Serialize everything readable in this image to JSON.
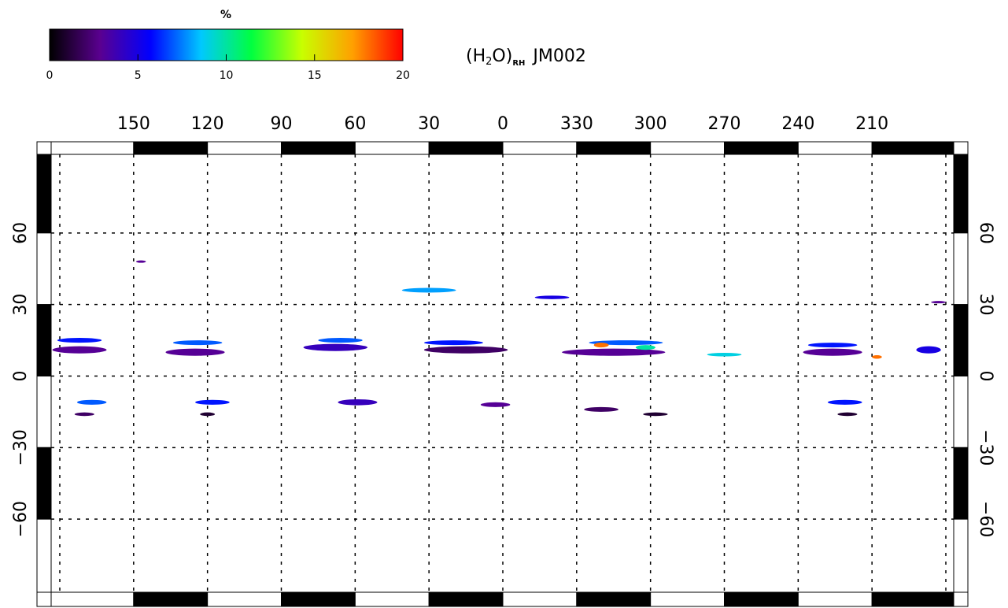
{
  "chart_data": {
    "type": "map",
    "title_parts": [
      "(H",
      "2",
      "O)",
      "RH",
      "JM002"
    ],
    "colorbar": {
      "label": "%",
      "clim": [
        0,
        20
      ],
      "ticks": [
        0,
        5,
        10,
        15,
        20
      ],
      "colormap": [
        "#000000",
        "#5a0090",
        "#0000ff",
        "#00c8ff",
        "#00ff40",
        "#c8ff00",
        "#ffa000",
        "#ff0000"
      ]
    },
    "xlim": [
      180,
      -180
    ],
    "xticks": [
      150,
      120,
      90,
      60,
      30,
      0,
      {
        "value": -30,
        "label": "330"
      },
      {
        "value": -60,
        "label": "300"
      },
      {
        "value": -90,
        "label": "270"
      },
      {
        "value": -120,
        "label": "240"
      },
      {
        "value": -150,
        "label": "210"
      }
    ],
    "ylim": [
      -90,
      90
    ],
    "yticks": [
      60,
      30,
      0,
      {
        "value": -30,
        "label": "−30"
      },
      {
        "value": -60,
        "label": "−60"
      }
    ],
    "grid": true,
    "patches": [
      {
        "lon": 172,
        "lat": 11,
        "lon_span": 22,
        "lat_span": 3,
        "value": 3
      },
      {
        "lon": 172,
        "lat": 15,
        "lon_span": 18,
        "lat_span": 2,
        "value": 6
      },
      {
        "lon": 125,
        "lat": 10,
        "lon_span": 24,
        "lat_span": 3,
        "value": 3
      },
      {
        "lon": 124,
        "lat": 14,
        "lon_span": 20,
        "lat_span": 2,
        "value": 7
      },
      {
        "lon": 68,
        "lat": 12,
        "lon_span": 26,
        "lat_span": 3,
        "value": 4
      },
      {
        "lon": 66,
        "lat": 15,
        "lon_span": 18,
        "lat_span": 2,
        "value": 7
      },
      {
        "lon": 15,
        "lat": 11,
        "lon_span": 34,
        "lat_span": 3,
        "value": 2
      },
      {
        "lon": 20,
        "lat": 14,
        "lon_span": 24,
        "lat_span": 2,
        "value": 6
      },
      {
        "lon": -45,
        "lat": 10,
        "lon_span": 42,
        "lat_span": 3,
        "value": 3
      },
      {
        "lon": -50,
        "lat": 14,
        "lon_span": 30,
        "lat_span": 2,
        "value": 7
      },
      {
        "lon": -40,
        "lat": 13,
        "lon_span": 6,
        "lat_span": 2,
        "value": 18
      },
      {
        "lon": -58,
        "lat": 12,
        "lon_span": 8,
        "lat_span": 2,
        "value": 10
      },
      {
        "lon": -90,
        "lat": 9,
        "lon_span": 14,
        "lat_span": 1.5,
        "value": 9
      },
      {
        "lon": -134,
        "lat": 10,
        "lon_span": 24,
        "lat_span": 3,
        "value": 3
      },
      {
        "lon": -134,
        "lat": 13,
        "lon_span": 20,
        "lat_span": 2,
        "value": 6
      },
      {
        "lon": -152,
        "lat": 8,
        "lon_span": 4,
        "lat_span": 1.5,
        "value": 18
      },
      {
        "lon": -173,
        "lat": 11,
        "lon_span": 10,
        "lat_span": 3,
        "value": 5
      },
      {
        "lon": 30,
        "lat": 36,
        "lon_span": 22,
        "lat_span": 2,
        "value": 8
      },
      {
        "lon": -20,
        "lat": 33,
        "lon_span": 14,
        "lat_span": 1.5,
        "value": 5
      },
      {
        "lon": 167,
        "lat": -11,
        "lon_span": 12,
        "lat_span": 2,
        "value": 7
      },
      {
        "lon": 170,
        "lat": -16,
        "lon_span": 8,
        "lat_span": 1.5,
        "value": 2
      },
      {
        "lon": 118,
        "lat": -11,
        "lon_span": 14,
        "lat_span": 2,
        "value": 6
      },
      {
        "lon": 120,
        "lat": -16,
        "lon_span": 6,
        "lat_span": 1.5,
        "value": 1
      },
      {
        "lon": 59,
        "lat": -11,
        "lon_span": 16,
        "lat_span": 2.5,
        "value": 4
      },
      {
        "lon": 3,
        "lat": -12,
        "lon_span": 12,
        "lat_span": 2,
        "value": 3
      },
      {
        "lon": -40,
        "lat": -14,
        "lon_span": 14,
        "lat_span": 2,
        "value": 2
      },
      {
        "lon": -62,
        "lat": -16,
        "lon_span": 10,
        "lat_span": 1.5,
        "value": 1
      },
      {
        "lon": -139,
        "lat": -11,
        "lon_span": 14,
        "lat_span": 2,
        "value": 6
      },
      {
        "lon": -140,
        "lat": -16,
        "lon_span": 8,
        "lat_span": 1.5,
        "value": 1
      },
      {
        "lon": 147,
        "lat": 48,
        "lon_span": 4,
        "lat_span": 1,
        "value": 3
      },
      {
        "lon": -177,
        "lat": 31,
        "lon_span": 6,
        "lat_span": 1,
        "value": 3
      }
    ]
  }
}
